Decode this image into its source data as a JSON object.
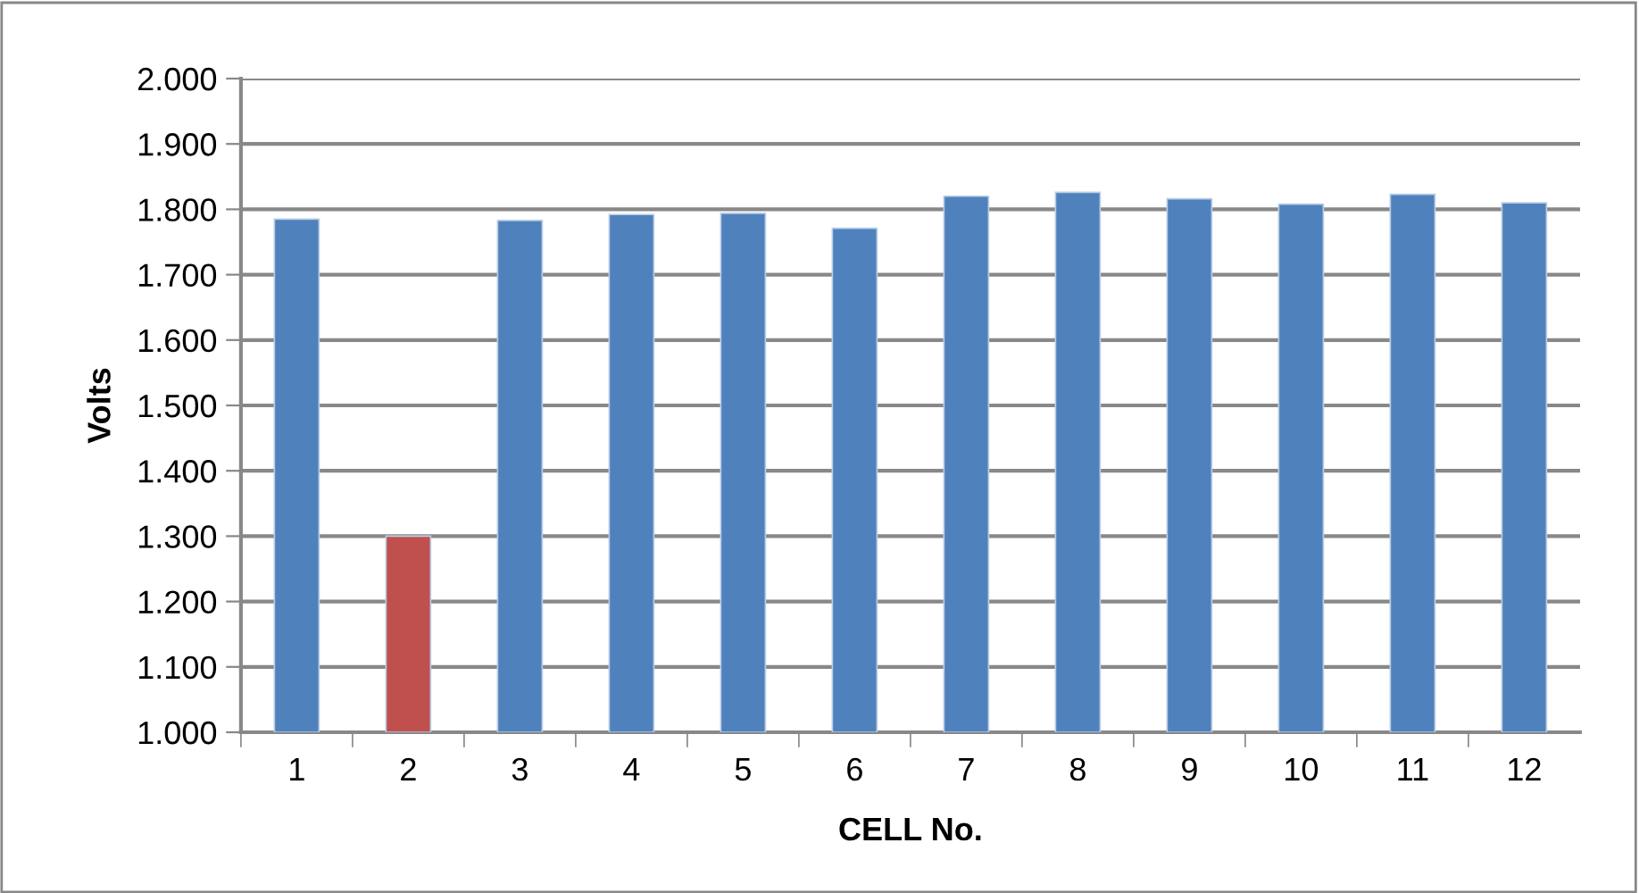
{
  "chart_data": {
    "type": "bar",
    "xlabel": "CELL No.",
    "ylabel": "Volts",
    "categories": [
      "1",
      "2",
      "3",
      "4",
      "5",
      "6",
      "7",
      "8",
      "9",
      "10",
      "11",
      "12"
    ],
    "values": [
      1.785,
      1.3,
      1.783,
      1.792,
      1.794,
      1.771,
      1.82,
      1.826,
      1.816,
      1.808,
      1.823,
      1.81
    ],
    "colors": [
      "#4f81bd",
      "#c0504d",
      "#4f81bd",
      "#4f81bd",
      "#4f81bd",
      "#4f81bd",
      "#4f81bd",
      "#4f81bd",
      "#4f81bd",
      "#4f81bd",
      "#4f81bd",
      "#4f81bd"
    ],
    "ylim": [
      1.0,
      2.0
    ],
    "yticks": [
      {
        "value": 1.0,
        "label": "1.000"
      },
      {
        "value": 1.1,
        "label": "1.100"
      },
      {
        "value": 1.2,
        "label": "1.200"
      },
      {
        "value": 1.3,
        "label": "1.300"
      },
      {
        "value": 1.4,
        "label": "1.400"
      },
      {
        "value": 1.5,
        "label": "1.500"
      },
      {
        "value": 1.6,
        "label": "1.600"
      },
      {
        "value": 1.7,
        "label": "1.700"
      },
      {
        "value": 1.8,
        "label": "1.800"
      },
      {
        "value": 1.9,
        "label": "1.900"
      },
      {
        "value": 2.0,
        "label": "2.000"
      }
    ],
    "grid": "y",
    "legend": false
  }
}
